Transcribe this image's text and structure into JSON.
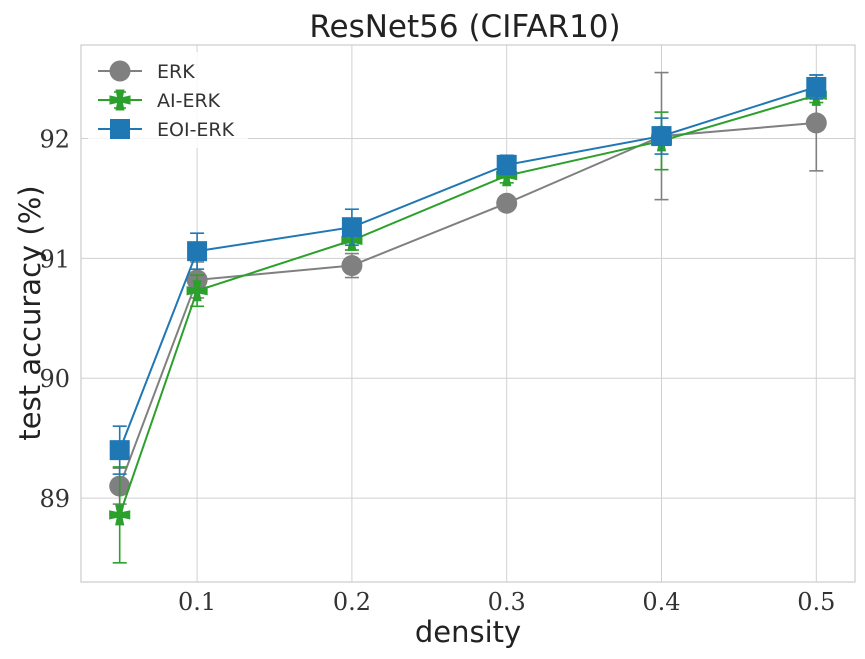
{
  "chart_data": {
    "type": "line",
    "title": "ResNet56 (CIFAR10)",
    "xlabel": "density",
    "ylabel": "test accuracy (%)",
    "xlim": [
      0.025,
      0.525
    ],
    "ylim": [
      88.3,
      92.78
    ],
    "xticks": [
      0.1,
      0.2,
      0.3,
      0.4,
      0.5
    ],
    "xtick_labels": [
      "0.1",
      "0.2",
      "0.3",
      "0.4",
      "0.5"
    ],
    "yticks": [
      89,
      90,
      91,
      92
    ],
    "ytick_labels": [
      "89",
      "90",
      "91",
      "92"
    ],
    "grid": true,
    "legend_position": "top-left",
    "series": [
      {
        "name": "ERK",
        "color": "#808080",
        "marker": "circle",
        "x": [
          0.05,
          0.1,
          0.2,
          0.3,
          0.4,
          0.5
        ],
        "y": [
          89.1,
          90.82,
          90.94,
          91.46,
          92.02,
          92.13
        ],
        "err": [
          0.15,
          0.15,
          0.1,
          0.04,
          0.53,
          0.4
        ]
      },
      {
        "name": "AI-ERK",
        "color": "#2ca02c",
        "marker": "x",
        "x": [
          0.05,
          0.1,
          0.2,
          0.3,
          0.4,
          0.5
        ],
        "y": [
          88.86,
          90.73,
          91.15,
          91.69,
          91.98,
          92.36
        ],
        "err": [
          0.4,
          0.13,
          0.08,
          0.06,
          0.24,
          0.06
        ]
      },
      {
        "name": "EOI-ERK",
        "color": "#1f77b4",
        "marker": "square",
        "x": [
          0.05,
          0.1,
          0.2,
          0.3,
          0.4,
          0.5
        ],
        "y": [
          89.4,
          91.06,
          91.26,
          91.78,
          92.02,
          92.43
        ],
        "err": [
          0.2,
          0.15,
          0.15,
          0.08,
          0.15,
          0.1
        ]
      }
    ]
  }
}
